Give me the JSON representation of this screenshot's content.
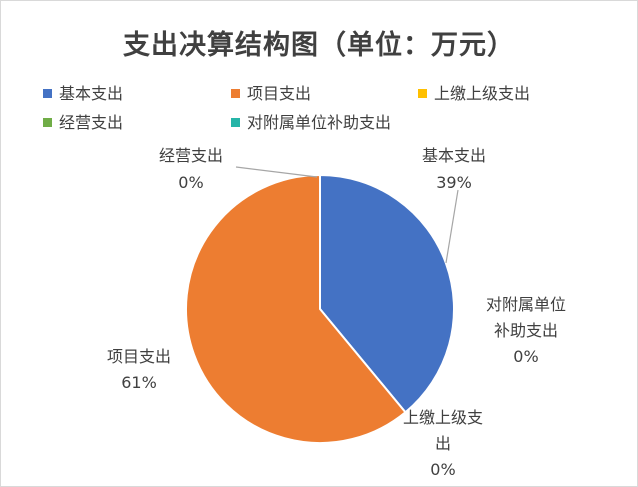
{
  "chart_data": {
    "type": "pie",
    "title": "支出决算结构图（单位：万元）",
    "legend_position": "top",
    "slices": [
      {
        "name": "基本支出",
        "percent": 39,
        "percent_label": "39%",
        "color": "#4472c4"
      },
      {
        "name": "项目支出",
        "percent": 61,
        "percent_label": "61%",
        "color": "#ed7d31"
      },
      {
        "name": "上缴上级支出",
        "percent": 0,
        "percent_label": "0%",
        "color": "#ffc000"
      },
      {
        "name": "经营支出",
        "percent": 0,
        "percent_label": "0%",
        "color": "#70ad47"
      },
      {
        "name": "对附属单位补助支出",
        "percent": 0,
        "percent_label": "0%",
        "color": "#26b5a8"
      }
    ]
  }
}
